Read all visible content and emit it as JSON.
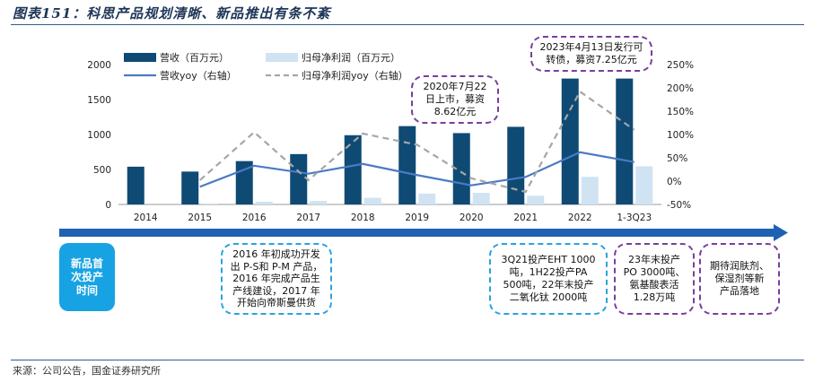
{
  "figure_title": "图表151：科思产品规划清晰、新品推出有条不紊",
  "source": "来源：公司公告，国金证券研究所",
  "colors": {
    "revenue_bar": "#0e4a74",
    "profit_bar": "#cfe3f3",
    "revenue_yoy": "#4a7ac4",
    "profit_yoy": "#a6a6a6",
    "timeline_arrow": "#1f62b4",
    "new_product_box": "#17a3e3",
    "purple_border": "#7a3e9d",
    "blue_border": "#29a3e0"
  },
  "chart_data": {
    "type": "bar",
    "categories": [
      "2014",
      "2015",
      "2016",
      "2017",
      "2018",
      "2019",
      "2020",
      "2021",
      "2022",
      "1-3Q23"
    ],
    "y_left": {
      "ticks": [
        "0",
        "500",
        "1000",
        "1500",
        "2000"
      ],
      "min": 0,
      "max": 2000
    },
    "y_right": {
      "ticks": [
        "-50%",
        "0%",
        "50%",
        "100%",
        "150%",
        "200%",
        "250%"
      ],
      "min": -50,
      "max": 250
    },
    "legend": [
      "营收（百万元）",
      "归母净利润（百万元）",
      "营收yoy（右轴）",
      "归母净利润yoy（右轴）"
    ],
    "series": [
      {
        "name": "营收（百万元）",
        "type": "bar",
        "axis": "left",
        "values": [
          540,
          470,
          620,
          720,
          990,
          1120,
          1020,
          1110,
          1800,
          1800
        ]
      },
      {
        "name": "归母净利润（百万元）",
        "type": "bar",
        "axis": "left",
        "values": [
          0,
          15,
          40,
          50,
          95,
          155,
          165,
          125,
          395,
          545
        ]
      },
      {
        "name": "营收yoy（右轴）",
        "type": "line",
        "axis": "right",
        "values": [
          null,
          -12,
          33,
          16,
          37,
          13,
          -9,
          9,
          62,
          41
        ]
      },
      {
        "name": "归母净利润yoy（右轴）",
        "type": "line",
        "axis": "right",
        "values": [
          null,
          2,
          105,
          2,
          102,
          78,
          6,
          -23,
          192,
          110
        ]
      }
    ],
    "annotations": [
      {
        "text": "2020年7月22\n日上市，募资\n8.62亿元"
      },
      {
        "text": "2023年4月13日发行可\n转债，募资7.25亿元"
      }
    ]
  },
  "timeline": {
    "label": "新品首\n次投产\n时间",
    "boxes": [
      {
        "text": "2016 年初成功开发\n出 P-S和 P-M 产品，\n2016 年完成产品生\n产线建设，2017 年\n开始向帝斯曼供货"
      },
      {
        "text": "3Q21投产EHT 1000\n吨，1H22投产PA\n500吨，22年末投产\n二氧化钛 2000吨"
      },
      {
        "text": "23年末投产\nPO 3000吨、\n氨基酸表活\n1.28万吨"
      },
      {
        "text": "期待润肤剂、\n保湿剂等新\n产品落地"
      }
    ]
  }
}
